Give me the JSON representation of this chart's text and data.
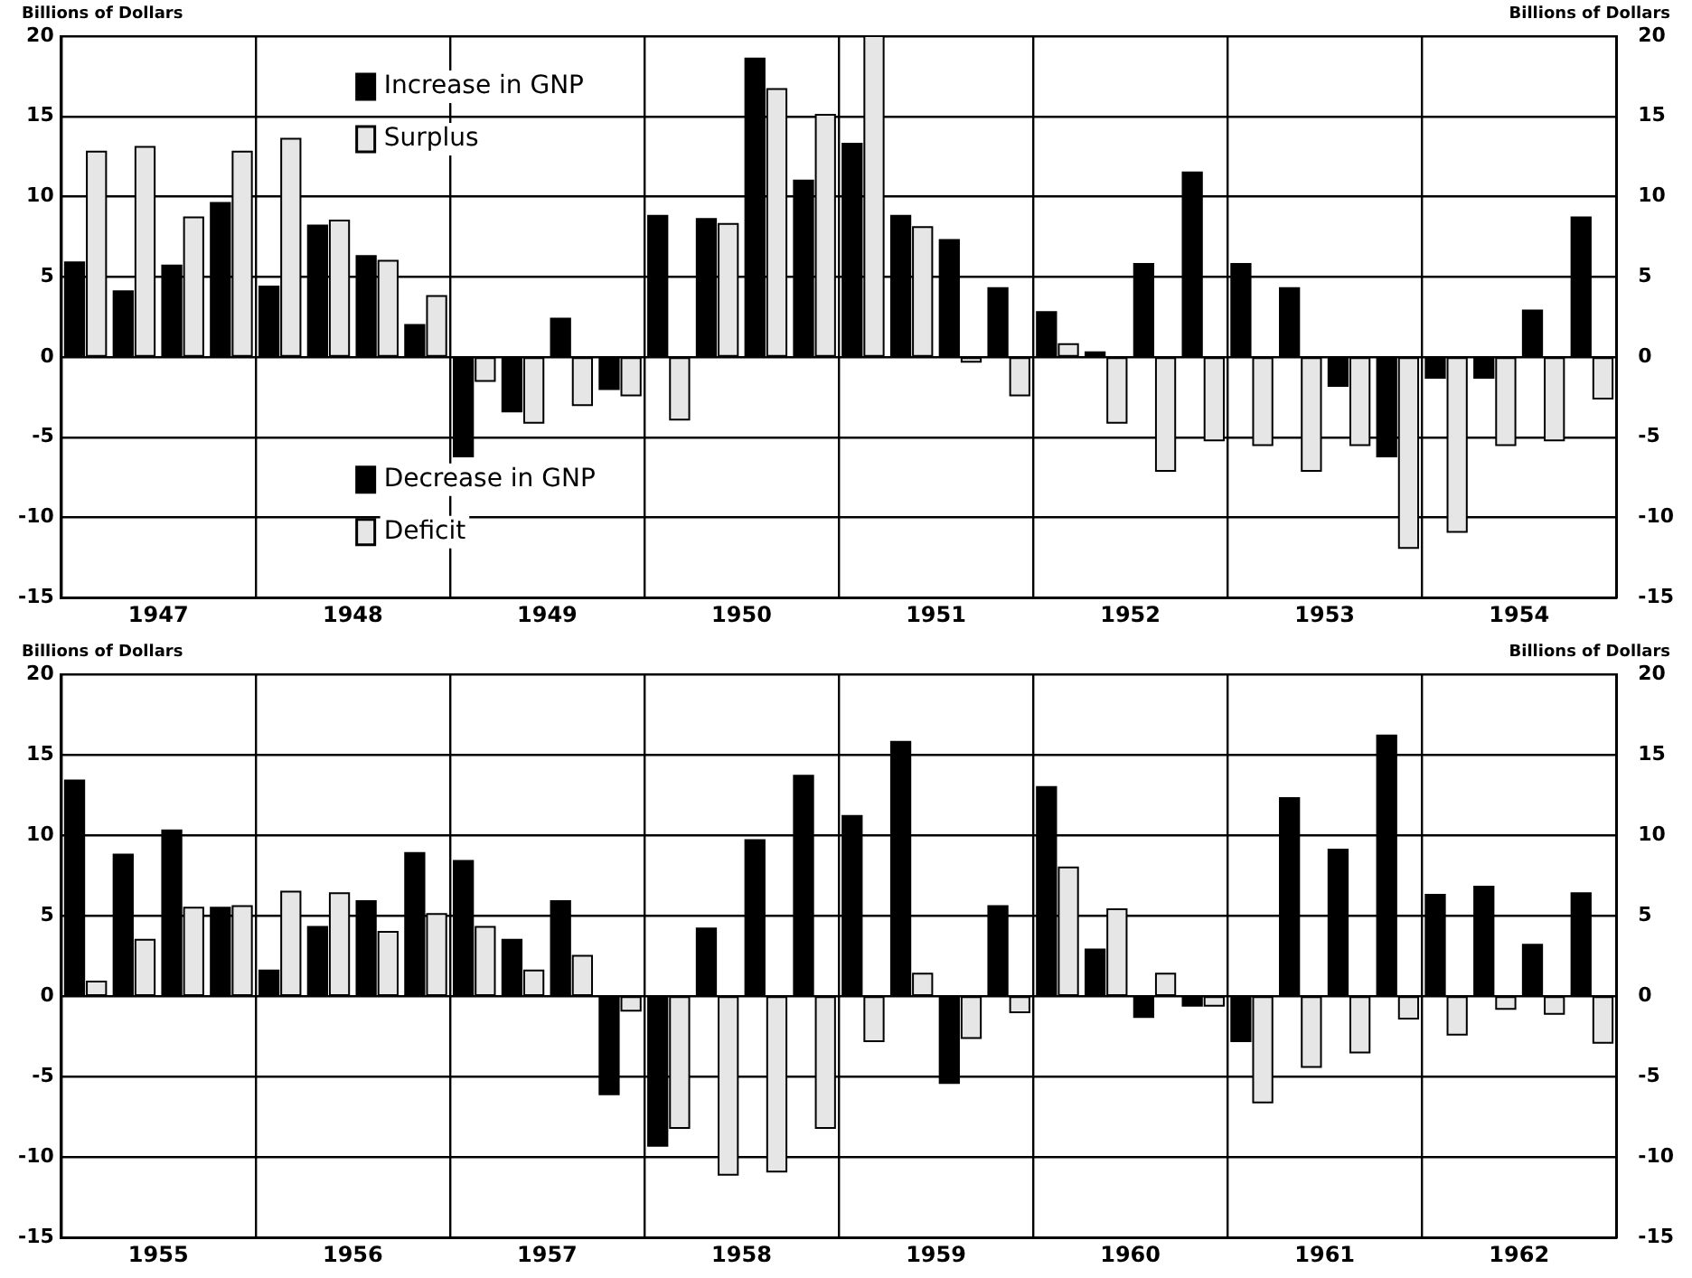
{
  "chart_data": [
    {
      "type": "bar",
      "ylabel": "Billions of Dollars",
      "y2label": "Billions of Dollars",
      "x": [
        1947.125,
        1947.375,
        1947.625,
        1947.875,
        1948.125,
        1948.375,
        1948.625,
        1948.875,
        1949.125,
        1949.375,
        1949.625,
        1949.875,
        1950.125,
        1950.375,
        1950.625,
        1950.875,
        1951.125,
        1951.375,
        1951.625,
        1951.875,
        1952.125,
        1952.375,
        1952.625,
        1952.875,
        1953.125,
        1953.375,
        1953.625,
        1953.875,
        1954.125,
        1954.375,
        1954.625,
        1954.875
      ],
      "series": [
        {
          "name": "Increase in GNP",
          "color": "#000000",
          "values": [
            5.9,
            4.1,
            5.7,
            9.6,
            4.4,
            8.2,
            6.3,
            2.0,
            null,
            null,
            2.4,
            null,
            8.8,
            8.6,
            18.6,
            11.0,
            13.3,
            8.8,
            7.3,
            4.3,
            2.8,
            0.3,
            5.8,
            11.5,
            5.8,
            4.3,
            null,
            null,
            null,
            null,
            2.9,
            8.7
          ]
        },
        {
          "name": "Decrease in GNP",
          "color": "#000000",
          "values": [
            null,
            null,
            null,
            null,
            null,
            null,
            null,
            null,
            -6.2,
            -3.4,
            null,
            -2.0,
            null,
            null,
            null,
            null,
            null,
            null,
            null,
            null,
            null,
            null,
            null,
            null,
            null,
            null,
            -1.8,
            -6.2,
            -1.3,
            -1.3,
            null,
            null
          ]
        },
        {
          "name": "Surplus",
          "color": "#e6e6e6",
          "values": [
            12.8,
            13.1,
            8.7,
            12.8,
            13.6,
            8.5,
            6.0,
            3.8,
            null,
            null,
            null,
            null,
            null,
            8.3,
            16.7,
            15.1,
            20,
            8.1,
            null,
            null,
            0.8,
            null,
            null,
            null,
            null,
            null,
            null,
            null,
            null,
            null,
            null,
            null
          ]
        },
        {
          "name": "Deficit",
          "color": "#e6e6e6",
          "values": [
            null,
            null,
            null,
            null,
            null,
            null,
            null,
            null,
            -1.5,
            -4.1,
            -3.0,
            -2.4,
            -3.9,
            null,
            null,
            null,
            null,
            null,
            -0.3,
            -2.4,
            null,
            -4.1,
            -7.1,
            -5.2,
            -5.5,
            -7.1,
            -5.5,
            -11.9,
            -10.9,
            -5.5,
            -5.2,
            -2.6
          ]
        }
      ],
      "xlim": [
        1947,
        1955
      ],
      "xticks": [
        {
          "value": 1947,
          "label": null
        },
        {
          "value": 1947.5,
          "label": "1947"
        },
        {
          "value": 1948,
          "label": null
        },
        {
          "value": 1948.5,
          "label": "1948"
        },
        {
          "value": 1949,
          "label": null
        },
        {
          "value": 1949.5,
          "label": "1949"
        },
        {
          "value": 1950,
          "label": null
        },
        {
          "value": 1950.5,
          "label": "1950"
        },
        {
          "value": 1951,
          "label": null
        },
        {
          "value": 1951.5,
          "label": "1951"
        },
        {
          "value": 1952,
          "label": null
        },
        {
          "value": 1952.5,
          "label": "1952"
        },
        {
          "value": 1953,
          "label": null
        },
        {
          "value": 1953.5,
          "label": "1953"
        },
        {
          "value": 1954,
          "label": null
        },
        {
          "value": 1954.5,
          "label": "1954"
        },
        {
          "value": 1955,
          "label": null
        }
      ],
      "ylim": [
        -15,
        20
      ],
      "yticks": [
        -15,
        -10,
        -5,
        0,
        5,
        10,
        15,
        20
      ],
      "y2lim": [
        -15,
        20
      ],
      "y2ticks": [
        -15,
        -10,
        -5,
        0,
        5,
        10,
        15,
        20
      ],
      "grid": true,
      "legend": "left"
    },
    {
      "type": "bar",
      "ylabel": "Billions of Dollars",
      "y2label": "Billions of Dollars",
      "x": [
        1955.125,
        1955.375,
        1955.625,
        1955.875,
        1956.125,
        1956.375,
        1956.625,
        1956.875,
        1957.125,
        1957.375,
        1957.625,
        1957.875,
        1958.125,
        1958.375,
        1958.625,
        1958.875,
        1959.125,
        1959.375,
        1959.625,
        1959.875,
        1960.125,
        1960.375,
        1960.625,
        1960.875,
        1961.125,
        1961.375,
        1961.625,
        1961.875,
        1962.125,
        1962.375,
        1962.625,
        1962.875
      ],
      "series": [
        {
          "color": "#000000",
          "values": [
            13.4,
            8.8,
            10.3,
            5.5,
            1.6,
            4.3,
            5.9,
            8.9,
            8.4,
            3.5,
            5.9,
            null,
            null,
            4.2,
            9.7,
            13.7,
            11.2,
            15.8,
            null,
            5.6,
            13.0,
            2.9,
            null,
            null,
            null,
            12.3,
            9.1,
            16.2,
            6.3,
            6.8,
            3.2,
            6.4
          ]
        },
        {
          "color": "#000000",
          "values": [
            null,
            null,
            null,
            null,
            null,
            null,
            null,
            null,
            null,
            null,
            null,
            -6.1,
            -9.3,
            null,
            null,
            null,
            null,
            null,
            -5.4,
            null,
            null,
            null,
            -1.3,
            -0.6,
            -2.8,
            null,
            null,
            null,
            null,
            null,
            null,
            null
          ]
        },
        {
          "color": "#e6e6e6",
          "values": [
            0.9,
            3.5,
            5.5,
            5.6,
            6.5,
            6.4,
            4.0,
            5.1,
            4.3,
            1.6,
            2.5,
            null,
            null,
            null,
            null,
            null,
            null,
            1.4,
            null,
            null,
            8.0,
            5.4,
            1.4,
            null,
            null,
            null,
            null,
            null,
            null,
            null,
            null,
            null
          ]
        },
        {
          "color": "#e6e6e6",
          "values": [
            null,
            null,
            null,
            null,
            null,
            null,
            null,
            null,
            null,
            null,
            null,
            -0.9,
            -8.2,
            -11.1,
            -10.9,
            -8.2,
            -2.8,
            null,
            -2.6,
            -1.0,
            null,
            null,
            null,
            -0.6,
            -6.6,
            -4.4,
            -3.5,
            -1.4,
            -2.4,
            -0.8,
            -1.1,
            -2.9
          ]
        }
      ],
      "xlim": [
        1955,
        1963
      ],
      "xticks": [
        {
          "value": 1955,
          "label": null
        },
        {
          "value": 1955.5,
          "label": "1955"
        },
        {
          "value": 1956,
          "label": null
        },
        {
          "value": 1956.5,
          "label": "1956"
        },
        {
          "value": 1957,
          "label": null
        },
        {
          "value": 1957.5,
          "label": "1957"
        },
        {
          "value": 1958,
          "label": null
        },
        {
          "value": 1958.5,
          "label": "1958"
        },
        {
          "value": 1959,
          "label": null
        },
        {
          "value": 1959.5,
          "label": "1959"
        },
        {
          "value": 1960,
          "label": null
        },
        {
          "value": 1960.5,
          "label": "1960"
        },
        {
          "value": 1961,
          "label": null
        },
        {
          "value": 1961.5,
          "label": "1961"
        },
        {
          "value": 1962,
          "label": null
        },
        {
          "value": 1962.5,
          "label": "1962"
        },
        {
          "value": 1963,
          "label": null
        }
      ],
      "ylim": [
        -15,
        20
      ],
      "yticks": [
        -15,
        -10,
        -5,
        0,
        5,
        10,
        15,
        20
      ],
      "y2lim": [
        -15,
        20
      ],
      "y2ticks": [
        -15,
        -10,
        -5,
        0,
        5,
        10,
        15,
        20
      ],
      "grid": true
    }
  ]
}
